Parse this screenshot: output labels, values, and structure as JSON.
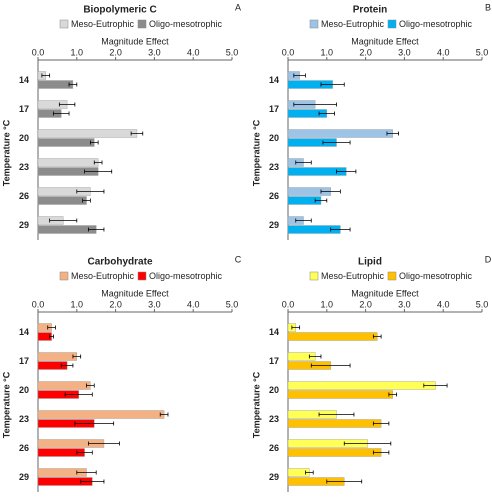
{
  "chart_data": [
    {
      "type": "bar",
      "orientation": "horizontal",
      "title": "Biopolymeric C",
      "panel": "A",
      "xlabel": "Magnitude Effect",
      "ylabel": "Temperature °C",
      "categories": [
        "14",
        "17",
        "20",
        "23",
        "26",
        "29"
      ],
      "series": [
        {
          "name": "Meso-Eutrophic",
          "color": "#d9d9d9",
          "values": [
            0.2,
            0.75,
            2.55,
            1.55,
            1.35,
            0.65
          ],
          "errors": [
            0.1,
            0.2,
            0.15,
            0.1,
            0.35,
            0.35
          ]
        },
        {
          "name": "Oligo-mesotrophic",
          "color": "#8c8c8c",
          "values": [
            0.9,
            0.6,
            1.45,
            1.55,
            1.25,
            1.5
          ],
          "errors": [
            0.1,
            0.2,
            0.1,
            0.35,
            0.1,
            0.2
          ]
        }
      ],
      "xlim": [
        0,
        5
      ],
      "xticks": [
        {
          "value": 0,
          "label": "0.0"
        },
        {
          "value": 1,
          "label": "1.0"
        },
        {
          "value": 2,
          "label": "2.0"
        },
        {
          "value": 3,
          "label": "3.0"
        },
        {
          "value": 4,
          "label": "4.0"
        },
        {
          "value": 5,
          "label": "5.0"
        }
      ]
    },
    {
      "type": "bar",
      "orientation": "horizontal",
      "title": "Protein",
      "panel": "B",
      "xlabel": "Magnitude Effect",
      "ylabel": "Temperature °C",
      "categories": [
        "14",
        "17",
        "20",
        "23",
        "26",
        "29"
      ],
      "series": [
        {
          "name": "Meso-Eutrophic",
          "color": "#9dc3e6",
          "values": [
            0.3,
            0.7,
            2.7,
            0.4,
            1.1,
            0.4
          ],
          "errors": [
            0.15,
            0.55,
            0.15,
            0.2,
            0.25,
            0.2
          ]
        },
        {
          "name": "Oligo-mesotrophic",
          "color": "#00b0f0",
          "values": [
            1.15,
            1.0,
            1.25,
            1.5,
            0.85,
            1.35
          ],
          "errors": [
            0.3,
            0.2,
            0.35,
            0.25,
            0.15,
            0.25
          ]
        }
      ],
      "xlim": [
        0,
        5
      ],
      "xticks": [
        {
          "value": 0,
          "label": "0.0"
        },
        {
          "value": 1,
          "label": "1.0"
        },
        {
          "value": 2,
          "label": "2.0"
        },
        {
          "value": 3,
          "label": "3.0"
        },
        {
          "value": 4,
          "label": "4.0"
        },
        {
          "value": 5,
          "label": "5.0"
        }
      ]
    },
    {
      "type": "bar",
      "orientation": "horizontal",
      "title": "Carbohydrate",
      "panel": "C",
      "xlabel": "Magnitude Effect",
      "ylabel": "Temperature °C",
      "categories": [
        "14",
        "17",
        "20",
        "23",
        "26",
        "29"
      ],
      "series": [
        {
          "name": "Meso-Eutrophic",
          "color": "#f4b183",
          "values": [
            0.35,
            1.0,
            1.35,
            3.25,
            1.7,
            1.25
          ],
          "errors": [
            0.1,
            0.1,
            0.1,
            0.1,
            0.4,
            0.25
          ]
        },
        {
          "name": "Oligo-mesotrophic",
          "color": "#ff0000",
          "values": [
            0.35,
            0.75,
            1.05,
            1.45,
            1.2,
            1.4
          ],
          "errors": [
            0.05,
            0.15,
            0.35,
            0.5,
            0.2,
            0.3
          ]
        }
      ],
      "xlim": [
        0,
        5
      ],
      "xticks": [
        {
          "value": 0,
          "label": "0.0"
        },
        {
          "value": 1,
          "label": "1.0"
        },
        {
          "value": 2,
          "label": "2.0"
        },
        {
          "value": 3,
          "label": "3.0"
        },
        {
          "value": 4,
          "label": "4.0"
        },
        {
          "value": 5,
          "label": "5.0"
        }
      ]
    },
    {
      "type": "bar",
      "orientation": "horizontal",
      "title": "Lipid",
      "panel": "D",
      "xlabel": "Magnitude Effect",
      "ylabel": "Temperature °C",
      "categories": [
        "14",
        "17",
        "20",
        "23",
        "26",
        "29"
      ],
      "series": [
        {
          "name": "Meso-Eutrophic",
          "color": "#ffff55",
          "values": [
            0.2,
            0.7,
            3.8,
            1.25,
            2.05,
            0.55
          ],
          "errors": [
            0.1,
            0.15,
            0.3,
            0.45,
            0.6,
            0.1
          ]
        },
        {
          "name": "Oligo-mesotrophic",
          "color": "#ffc000",
          "values": [
            2.3,
            1.1,
            2.7,
            2.4,
            2.4,
            1.45
          ],
          "errors": [
            0.1,
            0.5,
            0.1,
            0.2,
            0.2,
            0.45
          ]
        }
      ],
      "xlim": [
        0,
        5
      ],
      "xticks": [
        {
          "value": 0,
          "label": "0.0"
        },
        {
          "value": 1,
          "label": "1.0"
        },
        {
          "value": 2,
          "label": "2.0"
        },
        {
          "value": 3,
          "label": "3.0"
        },
        {
          "value": 4,
          "label": "4.0"
        },
        {
          "value": 5,
          "label": "5.0"
        }
      ]
    }
  ]
}
